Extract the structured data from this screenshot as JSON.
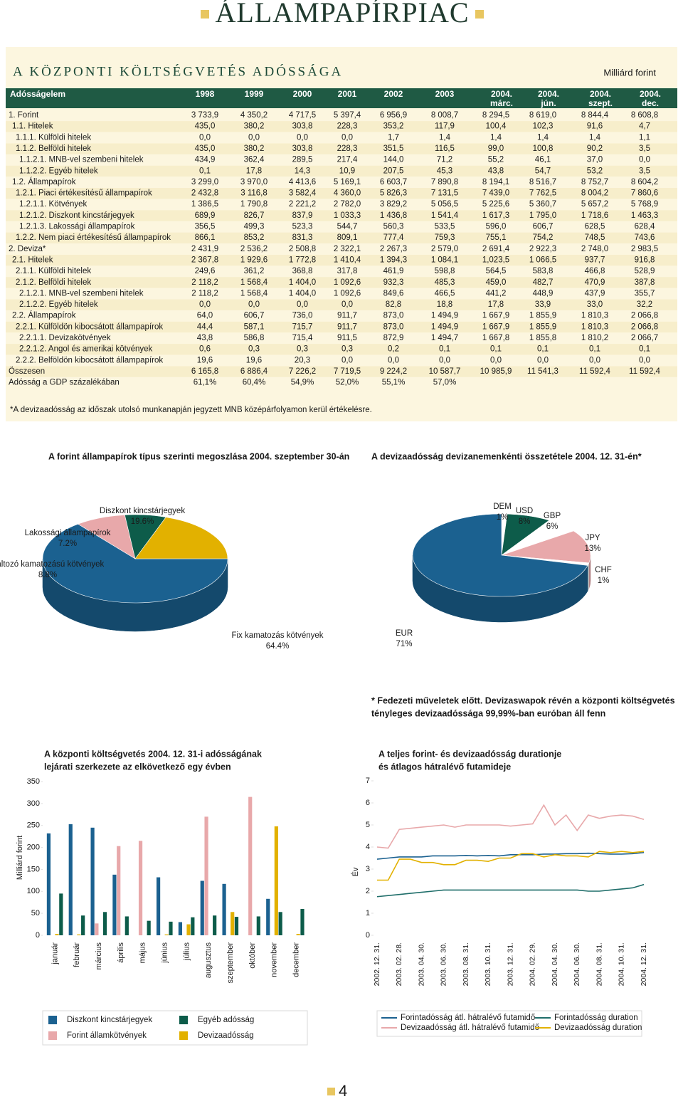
{
  "header": {
    "title": "ÁLLAMPAPÍRPIAC"
  },
  "section": {
    "title": "A KÖZPONTI KÖLTSÉGVETÉS ADÓSSÁGA",
    "unit": "Milliárd forint"
  },
  "table": {
    "columns": [
      "Adósságelem",
      "1998",
      "1999",
      "2000",
      "2001",
      "2002",
      "2003",
      [
        "2004.",
        "márc."
      ],
      [
        "2004.",
        "jún."
      ],
      [
        "2004.",
        "szept."
      ],
      [
        "2004.",
        "dec."
      ]
    ],
    "rows": [
      [
        "1. Forint",
        "3 733,9",
        "4 350,2",
        "4 717,5",
        "5 397,4",
        "6 956,9",
        "8 008,7",
        "8 294,5",
        "8 619,0",
        "8 844,4",
        "8 608,8"
      ],
      [
        "1.1. Hitelek",
        "435,0",
        "380,2",
        "303,8",
        "228,3",
        "353,2",
        "117,9",
        "100,4",
        "102,3",
        "91,6",
        "4,7"
      ],
      [
        "1.1.1. Külföldi hitelek",
        "0,0",
        "0,0",
        "0,0",
        "0,0",
        "1,7",
        "1,4",
        "1,4",
        "1,4",
        "1,4",
        "1,1"
      ],
      [
        "1.1.2. Belföldi hitelek",
        "435,0",
        "380,2",
        "303,8",
        "228,3",
        "351,5",
        "116,5",
        "99,0",
        "100,8",
        "90,2",
        "3,5"
      ],
      [
        "1.1.2.1. MNB-vel szembeni hitelek",
        "434,9",
        "362,4",
        "289,5",
        "217,4",
        "144,0",
        "71,2",
        "55,2",
        "46,1",
        "37,0",
        "0,0"
      ],
      [
        "1.1.2.2. Egyéb hitelek",
        "0,1",
        "17,8",
        "14,3",
        "10,9",
        "207,5",
        "45,3",
        "43,8",
        "54,7",
        "53,2",
        "3,5"
      ],
      [
        "1.2. Állampapírok",
        "3 299,0",
        "3 970,0",
        "4 413,6",
        "5 169,1",
        "6 603,7",
        "7 890,8",
        "8 194,1",
        "8 516,7",
        "8 752,7",
        "8 604,2"
      ],
      [
        "1.2.1. Piaci értékesítésű állampapírok",
        "2 432,8",
        "3 116,8",
        "3 582,4",
        "4 360,0",
        "5 826,3",
        "7 131,5",
        "7 439,0",
        "7 762,5",
        "8 004,2",
        "7 860,6"
      ],
      [
        "1.2.1.1. Kötvények",
        "1 386,5",
        "1 790,8",
        "2 221,2",
        "2 782,0",
        "3 829,2",
        "5 056,5",
        "5 225,6",
        "5 360,7",
        "5 657,2",
        "5 768,9"
      ],
      [
        "1.2.1.2. Diszkont kincstárjegyek",
        "689,9",
        "826,7",
        "837,9",
        "1 033,3",
        "1 436,8",
        "1 541,4",
        "1 617,3",
        "1 795,0",
        "1 718,6",
        "1 463,3"
      ],
      [
        "1.2.1.3. Lakossági állampapírok",
        "356,5",
        "499,3",
        "523,3",
        "544,7",
        "560,3",
        "533,5",
        "596,0",
        "606,7",
        "628,5",
        "628,4"
      ],
      [
        "1.2.2. Nem piaci értékesítésű állampapírok",
        "866,1",
        "853,2",
        "831,3",
        "809,1",
        "777,4",
        "759,3",
        "755,1",
        "754,2",
        "748,5",
        "743,6"
      ],
      [
        "2. Deviza*",
        "2 431,9",
        "2 536,2",
        "2 508,8",
        "2 322,1",
        "2 267,3",
        "2 579,0",
        "2 691,4",
        "2 922,3",
        "2 748,0",
        "2 983,5"
      ],
      [
        "2.1. Hitelek",
        "2 367,8",
        "1 929,6",
        "1 772,8",
        "1 410,4",
        "1 394,3",
        "1 084,1",
        "1,023,5",
        "1 066,5",
        "937,7",
        "916,8"
      ],
      [
        "2.1.1. Külföldi hitelek",
        "249,6",
        "361,2",
        "368,8",
        "317,8",
        "461,9",
        "598,8",
        "564,5",
        "583,8",
        "466,8",
        "528,9"
      ],
      [
        "2.1.2. Belföldi hitelek",
        "2 118,2",
        "1 568,4",
        "1 404,0",
        "1 092,6",
        "932,3",
        "485,3",
        "459,0",
        "482,7",
        "470,9",
        "387,8"
      ],
      [
        "2.1.2.1. MNB-vel szembeni hitelek",
        "2 118,2",
        "1 568,4",
        "1 404,0",
        "1 092,6",
        "849,6",
        "466,5",
        "441,2",
        "448,9",
        "437,9",
        "355,7"
      ],
      [
        "2.1.2.2. Egyéb hitelek",
        "0,0",
        "0,0",
        "0,0",
        "0,0",
        "82,8",
        "18,8",
        "17,8",
        "33,9",
        "33,0",
        "32,2"
      ],
      [
        "2.2. Állampapírok",
        "64,0",
        "606,7",
        "736,0",
        "911,7",
        "873,0",
        "1 494,9",
        "1 667,9",
        "1 855,9",
        "1 810,3",
        "2 066,8"
      ],
      [
        "2.2.1. Külföldön kibocsátott állampapírok",
        "44,4",
        "587,1",
        "715,7",
        "911,7",
        "873,0",
        "1 494,9",
        "1 667,9",
        "1 855,9",
        "1 810,3",
        "2 066,8"
      ],
      [
        "2.2.1.1. Devizakötvények",
        "43,8",
        "586,8",
        "715,4",
        "911,5",
        "872,9",
        "1 494,7",
        "1 667,8",
        "1 855,8",
        "1 810,2",
        "2 066,7"
      ],
      [
        "2.2.1.2. Angol és amerikai kötvények",
        "0,6",
        "0,3",
        "0,3",
        "0,3",
        "0,2",
        "0,1",
        "0,1",
        "0,1",
        "0,1",
        "0,1"
      ],
      [
        "2.2.2. Belföldön kibocsátott állampapírok",
        "19,6",
        "19,6",
        "20,3",
        "0,0",
        "0,0",
        "0,0",
        "0,0",
        "0,0",
        "0,0",
        "0,0"
      ],
      [
        "Összesen",
        "6 165,8",
        "6 886,4",
        "7 226,2",
        "7 719,5",
        "9 224,2",
        "10 587,7",
        "10 985,9",
        "11 541,3",
        "11 592,4",
        "11 592,4"
      ],
      [
        "Adósság a GDP százalékában",
        "61,1%",
        "60,4%",
        "54,9%",
        "52,0%",
        "55,1%",
        "57,0%"
      ]
    ]
  },
  "footnote": "*A devizaadósság az időszak utolsó munkanapján jegyzett MNB középárfolyamon kerül értékelésre.",
  "chart_data": [
    {
      "type": "pie",
      "title": "A forint állampapírok típus szerinti megoszlása 2004. szeptember 30-án",
      "categories": [
        "Fix kamatozás kötvények",
        "Változó kamatozású kötvények",
        "Lakossági állampapírok",
        "Diszkont kincstárjegyek"
      ],
      "values": [
        64.4,
        8.8,
        7.2,
        19.6
      ],
      "value_labels": [
        "64.4%",
        "8.8%",
        "7.2%",
        "19.6%"
      ],
      "colors": [
        "#1b6190",
        "#e8a8aa",
        "#0d5c4a",
        "#e2b100"
      ]
    },
    {
      "type": "pie",
      "title": "A devizaadósság devizanemenkénti összetétele 2004. 12. 31-én*",
      "categories": [
        "DEM",
        "USD",
        "GBP",
        "JPY",
        "CHF",
        "EUR"
      ],
      "values": [
        1,
        8,
        6,
        13,
        1,
        71
      ],
      "value_labels": [
        "1%",
        "8%",
        "6%",
        "13%",
        "1%",
        "71%"
      ],
      "colors": [
        "#ffffff",
        "#0d5c4a",
        "#ffffff",
        "#e8a8aa",
        "#ffffff",
        "#1b6190"
      ],
      "note": [
        "* Fedezeti műveletek előtt. Devizaswapok révén a központi költségvetés",
        "tényleges devizaadóssága 99,99%-ban euróban áll fenn"
      ]
    },
    {
      "type": "bar",
      "title": [
        "A központi költségvetés 2004. 12. 31-i adósságának",
        "lejárati szerkezete az elkövetkező egy évben"
      ],
      "ylabel": "Milliárd forint",
      "categories": [
        "január",
        "február",
        "március",
        "április",
        "május",
        "június",
        "július",
        "augusztus",
        "szeptember",
        "október",
        "november",
        "december"
      ],
      "series": [
        {
          "name": "Diszkont kincstárjegyek",
          "color": "#1b6190",
          "values": [
            232,
            253,
            245,
            138,
            0,
            132,
            30,
            124,
            117,
            0,
            83,
            0
          ]
        },
        {
          "name": "Forint államkötvények",
          "color": "#e8a8aa",
          "values": [
            0,
            0,
            27,
            203,
            215,
            0,
            0,
            270,
            0,
            315,
            0,
            0
          ]
        },
        {
          "name": "Devizaadósság",
          "color": "#e2b100",
          "values": [
            3,
            2,
            0,
            0,
            0,
            2,
            25,
            0,
            53,
            0,
            248,
            3
          ]
        },
        {
          "name": "Egyéb adósság",
          "color": "#0d5c4a",
          "values": [
            95,
            45,
            53,
            43,
            33,
            31,
            41,
            45,
            42,
            43,
            53,
            60
          ]
        }
      ],
      "ylim": [
        0,
        350
      ],
      "yticks": [
        0,
        50,
        100,
        150,
        200,
        250,
        300,
        350
      ]
    },
    {
      "type": "line",
      "title": [
        "A teljes forint- és devizaadósság durationje",
        "és átlagos hátralévő futamideje"
      ],
      "ylabel": "Év",
      "categories": [
        "2002. 12. 31.",
        null,
        "2003. 02. 28.",
        null,
        "2003. 04. 30.",
        null,
        "2003. 06. 30.",
        null,
        "2003. 08. 31.",
        null,
        "2003. 10. 31.",
        null,
        "2003. 12. 31.",
        null,
        "2004. 02. 29.",
        null,
        "2004. 04. 30.",
        null,
        "2004. 06. 30.",
        null,
        "2004. 08. 31.",
        null,
        "2004. 10. 31.",
        null,
        "2004. 12. 31."
      ],
      "series": [
        {
          "name": "Forintadósság átl. hátralévő futamidő",
          "color": "#1b6190",
          "values": [
            3.45,
            3.5,
            3.55,
            3.55,
            3.55,
            3.6,
            3.6,
            3.6,
            3.62,
            3.6,
            3.62,
            3.6,
            3.65,
            3.65,
            3.65,
            3.68,
            3.68,
            3.7,
            3.7,
            3.72,
            3.7,
            3.68,
            3.68,
            3.7,
            3.75
          ]
        },
        {
          "name": "Devizaadósság átl. hátralévő futamidő",
          "color": "#e8a8aa",
          "values": [
            4.0,
            3.95,
            4.8,
            4.85,
            4.9,
            4.95,
            5.0,
            4.9,
            5.0,
            5.0,
            5.0,
            5.0,
            4.95,
            5.0,
            5.05,
            5.9,
            5.0,
            5.45,
            4.75,
            5.45,
            5.3,
            5.4,
            5.45,
            5.4,
            5.25
          ]
        },
        {
          "name": "Forintadósság duration",
          "color": "#1f6e6a",
          "values": [
            1.75,
            1.8,
            1.85,
            1.9,
            1.95,
            2.0,
            2.05,
            2.05,
            2.05,
            2.05,
            2.05,
            2.05,
            2.05,
            2.05,
            2.05,
            2.05,
            2.05,
            2.05,
            2.05,
            2.0,
            2.0,
            2.05,
            2.1,
            2.15,
            2.3
          ]
        },
        {
          "name": "Devizaadósság duration",
          "color": "#e2b100",
          "values": [
            2.5,
            2.5,
            3.45,
            3.45,
            3.3,
            3.3,
            3.2,
            3.2,
            3.4,
            3.4,
            3.35,
            3.5,
            3.5,
            3.7,
            3.7,
            3.55,
            3.65,
            3.6,
            3.6,
            3.55,
            3.8,
            3.75,
            3.8,
            3.75,
            3.8
          ]
        }
      ],
      "ylim": [
        0,
        7
      ],
      "yticks": [
        0,
        1,
        2,
        3,
        4,
        5,
        6,
        7
      ]
    }
  ],
  "page_number": "4"
}
